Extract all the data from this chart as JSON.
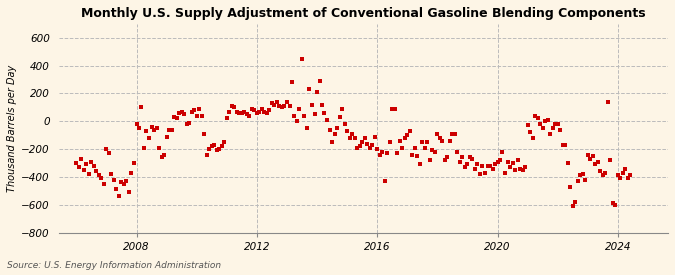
{
  "title": "Monthly U.S. Supply Adjustment of Conventional Gasoline Blending Components",
  "ylabel": "Thousand Barrels per Day",
  "source": "Source: U.S. Energy Information Administration",
  "background_color": "#fdf5e6",
  "dot_color": "#cc0000",
  "grid_color": "#bbbbbb",
  "ylim": [
    -800,
    700
  ],
  "yticks": [
    -800,
    -600,
    -400,
    -200,
    0,
    200,
    400,
    600
  ],
  "start_year": 2006,
  "start_month": 1,
  "values": [
    -300,
    -330,
    -270,
    -350,
    -310,
    -380,
    -290,
    -320,
    -360,
    -390,
    -410,
    -450,
    -200,
    -230,
    -380,
    -420,
    -490,
    -540,
    -440,
    -450,
    -430,
    -510,
    -370,
    -300,
    -20,
    -50,
    100,
    -190,
    -70,
    -120,
    -40,
    -60,
    -50,
    -190,
    -260,
    -240,
    -110,
    -60,
    -60,
    30,
    20,
    60,
    70,
    50,
    -20,
    -10,
    70,
    80,
    40,
    90,
    40,
    -90,
    -240,
    -200,
    -180,
    -170,
    -210,
    -200,
    -180,
    -150,
    20,
    70,
    110,
    100,
    70,
    60,
    60,
    70,
    50,
    40,
    90,
    80,
    60,
    70,
    90,
    70,
    60,
    80,
    130,
    120,
    140,
    110,
    100,
    110,
    140,
    110,
    280,
    40,
    0,
    90,
    450,
    40,
    -50,
    230,
    120,
    50,
    210,
    290,
    120,
    60,
    10,
    -60,
    -150,
    -90,
    -50,
    30,
    90,
    -20,
    -70,
    -120,
    -90,
    -120,
    -190,
    -180,
    -150,
    -120,
    -160,
    -190,
    -170,
    -110,
    -200,
    -240,
    -220,
    -430,
    -230,
    -150,
    90,
    90,
    -230,
    -140,
    -190,
    -120,
    -100,
    -70,
    -240,
    -190,
    -250,
    -310,
    -150,
    -190,
    -150,
    -280,
    -210,
    -220,
    -90,
    -120,
    -140,
    -280,
    -260,
    -140,
    -90,
    -90,
    -220,
    -290,
    -260,
    -330,
    -310,
    -260,
    -270,
    -340,
    -310,
    -380,
    -320,
    -370,
    -320,
    -320,
    -340,
    -310,
    -290,
    -280,
    -220,
    -370,
    -290,
    -330,
    -300,
    -350,
    -280,
    -340,
    -350,
    -330,
    -30,
    -80,
    -120,
    40,
    20,
    -20,
    -50,
    0,
    10,
    -90,
    -50,
    -20,
    -20,
    -60,
    -170,
    -170,
    -300,
    -470,
    -610,
    -580,
    -430,
    -390,
    -380,
    -420,
    -240,
    -270,
    -250,
    -310,
    -290,
    -360,
    -390,
    -370,
    140,
    -280,
    -590,
    -600,
    -390,
    -410,
    -370,
    -340,
    -410,
    -390
  ],
  "xlim_start": [
    2005,
    6
  ],
  "xlim_end": [
    2025,
    9
  ],
  "xtick_years": [
    2008,
    2012,
    2016,
    2020,
    2024
  ]
}
